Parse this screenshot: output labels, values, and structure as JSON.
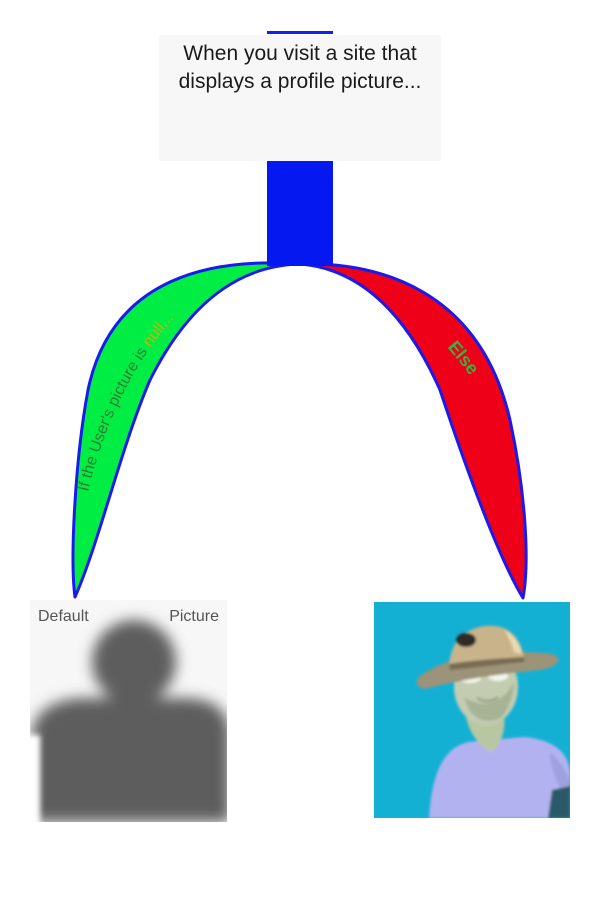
{
  "title": {
    "text": "When you visit a site that displays a profile picture..."
  },
  "branches": {
    "left": {
      "text_prefix": "If the User's picture is ",
      "text_highlight": "null...",
      "fill": "#00ee44",
      "label_color": "#2e7d32",
      "highlight_color": "#c8b400"
    },
    "right": {
      "text": "Else",
      "fill": "#ee0018",
      "label_color": "#3cb043"
    },
    "stem_color": "#0618f0",
    "outline_color": "#1a1aee"
  },
  "default_picture": {
    "label_left": "Default",
    "label_right": "Picture",
    "silhouette_color": "#5d5d5d"
  },
  "user_picture": {
    "background": "#14b0d4"
  }
}
